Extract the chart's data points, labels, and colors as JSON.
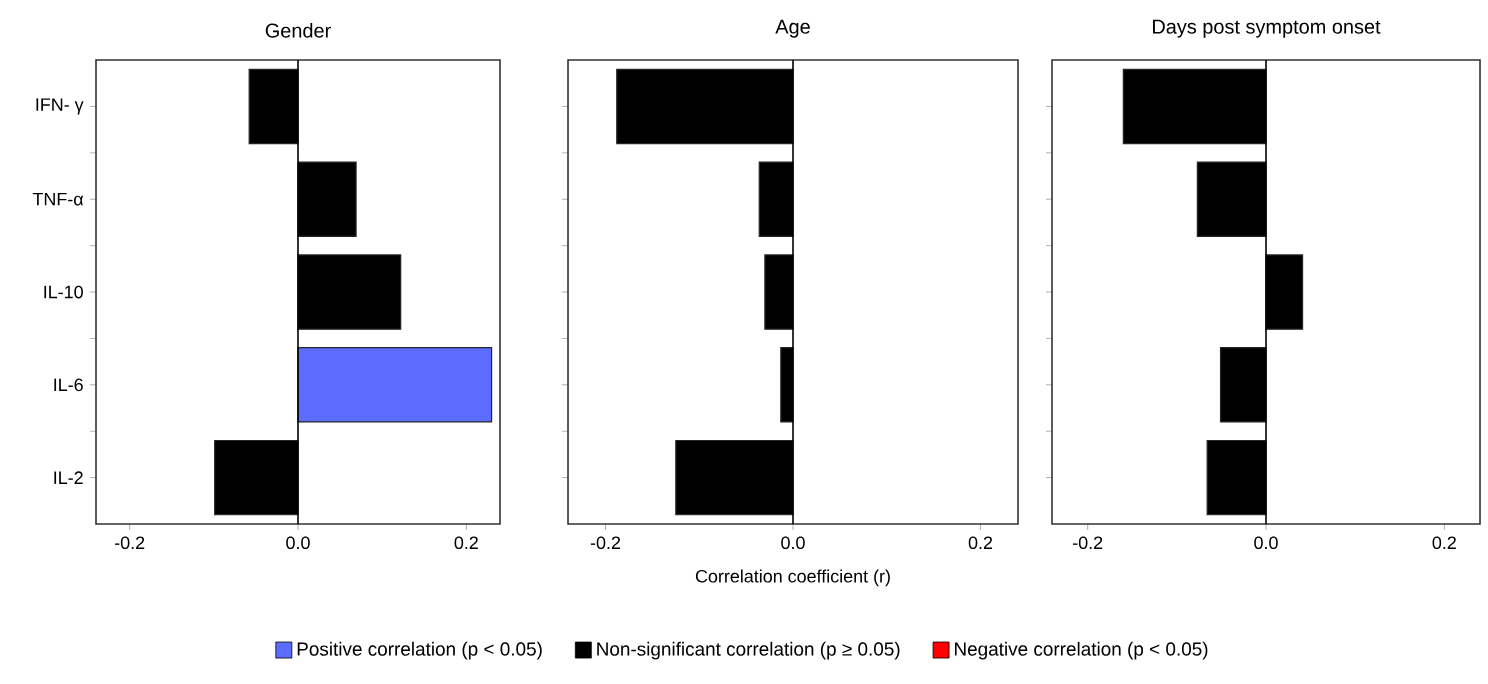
{
  "chart_data": [
    {
      "type": "bar",
      "orientation": "horizontal",
      "title": "Gender",
      "categories": [
        "IFN- γ",
        "TNF-α",
        "IL-10",
        "IL-6",
        "IL-2"
      ],
      "series": [
        {
          "name": "Positive correlation (p < 0.05)",
          "color": "#5c6cff",
          "values": [
            null,
            null,
            null,
            0.23,
            null
          ]
        },
        {
          "name": "Non-significant correlation (p ≥ 0.05)",
          "color": "#000000",
          "values": [
            -0.058,
            0.069,
            0.122,
            null,
            -0.099
          ]
        },
        {
          "name": "Negative correlation (p < 0.05)",
          "color": "#ff0000",
          "values": [
            null,
            null,
            null,
            null,
            null
          ]
        }
      ],
      "xlim": [
        -0.24,
        0.24
      ],
      "xticks": [
        {
          "value": -0.2,
          "label": "-0.2"
        },
        {
          "value": 0,
          "label": "0.0"
        },
        {
          "value": 0.2,
          "label": "0.2"
        }
      ],
      "ref_lines": [
        {
          "axis": "x",
          "value": 0
        }
      ],
      "legend": "bottom"
    },
    {
      "type": "bar",
      "orientation": "horizontal",
      "title": "Age",
      "xlabel": "Correlation coefficient (r)",
      "categories": [
        null,
        null,
        null,
        null,
        null
      ],
      "series": [
        {
          "color": "#000000",
          "values": [
            -0.188,
            -0.036,
            -0.03,
            -0.013,
            -0.125
          ]
        }
      ],
      "xlim": [
        -0.24,
        0.24
      ],
      "xticks": [
        {
          "value": -0.2,
          "label": "-0.2"
        },
        {
          "value": 0,
          "label": "0.0"
        },
        {
          "value": 0.2,
          "label": "0.2"
        }
      ],
      "ref_lines": [
        {
          "axis": "x",
          "value": 0
        }
      ],
      "tick_labels": "x"
    },
    {
      "type": "bar",
      "orientation": "horizontal",
      "title": "Days post symptom onset",
      "categories": [
        null,
        null,
        null,
        null,
        null
      ],
      "series": [
        {
          "color": "#000000",
          "values": [
            -0.16,
            -0.077,
            0.041,
            -0.051,
            -0.066
          ]
        }
      ],
      "xlim": [
        -0.24,
        0.24
      ],
      "xticks": [
        {
          "value": -0.2,
          "label": "-0.2"
        },
        {
          "value": 0,
          "label": "0.0"
        },
        {
          "value": 0.2,
          "label": "0.2"
        }
      ],
      "ref_lines": [
        {
          "axis": "x",
          "value": 0
        }
      ],
      "tick_labels": "x"
    }
  ]
}
